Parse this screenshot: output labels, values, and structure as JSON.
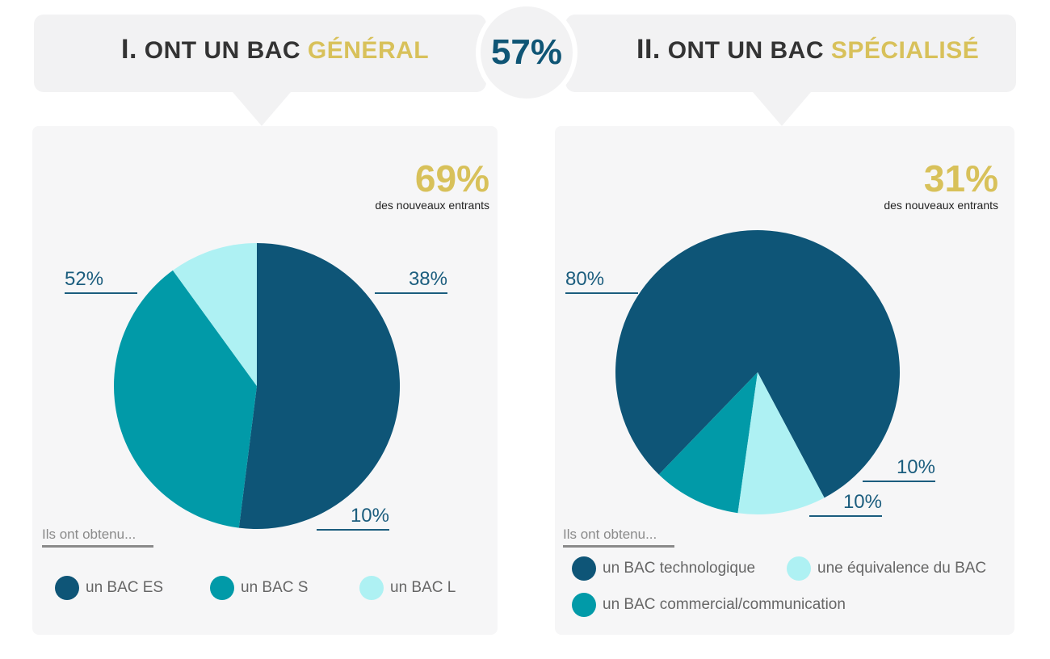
{
  "header": {
    "left": {
      "numeral": "I.",
      "prefix": "ONT UN BAC",
      "accent": "GÉNÉRAL"
    },
    "right": {
      "numeral": "II.",
      "prefix": "ONT UN BAC",
      "accent": "SPÉCIALISÉ"
    },
    "center_value": "57%"
  },
  "left_panel": {
    "share": "69%",
    "share_label": "des nouveaux entrants",
    "legend_title": "Ils ont obtenu...",
    "callouts": {
      "a": "52%",
      "b": "38%",
      "c": "10%"
    },
    "legend": [
      {
        "label": "un BAC ES",
        "color": "#0e5577"
      },
      {
        "label": "un BAC S",
        "color": "#019aa8"
      },
      {
        "label": "un BAC L",
        "color": "#aef1f3"
      }
    ]
  },
  "right_panel": {
    "share": "31%",
    "share_label": "des nouveaux entrants",
    "legend_title": "Ils ont obtenu...",
    "callouts": {
      "a": "80%",
      "b": "10%",
      "c": "10%"
    },
    "legend": [
      {
        "label": "un BAC technologique",
        "color": "#0e5577"
      },
      {
        "label": "une équivalence du BAC",
        "color": "#aef1f3"
      },
      {
        "label": "un BAC commercial/communication",
        "color": "#019aa8"
      }
    ]
  },
  "chart_data": [
    {
      "type": "pie",
      "title": "I. ONT UN BAC GÉNÉRAL",
      "categories": [
        "un BAC ES",
        "un BAC S",
        "un BAC L"
      ],
      "values": [
        52,
        38,
        10
      ],
      "colors": [
        "#0e5577",
        "#019aa8",
        "#aef1f3"
      ]
    },
    {
      "type": "pie",
      "title": "II. ONT UN BAC SPÉCIALISÉ",
      "categories": [
        "un BAC technologique",
        "un BAC commercial/communication",
        "une équivalence du BAC"
      ],
      "values": [
        80,
        10,
        10
      ],
      "colors": [
        "#0e5577",
        "#019aa8",
        "#aef1f3"
      ]
    }
  ]
}
